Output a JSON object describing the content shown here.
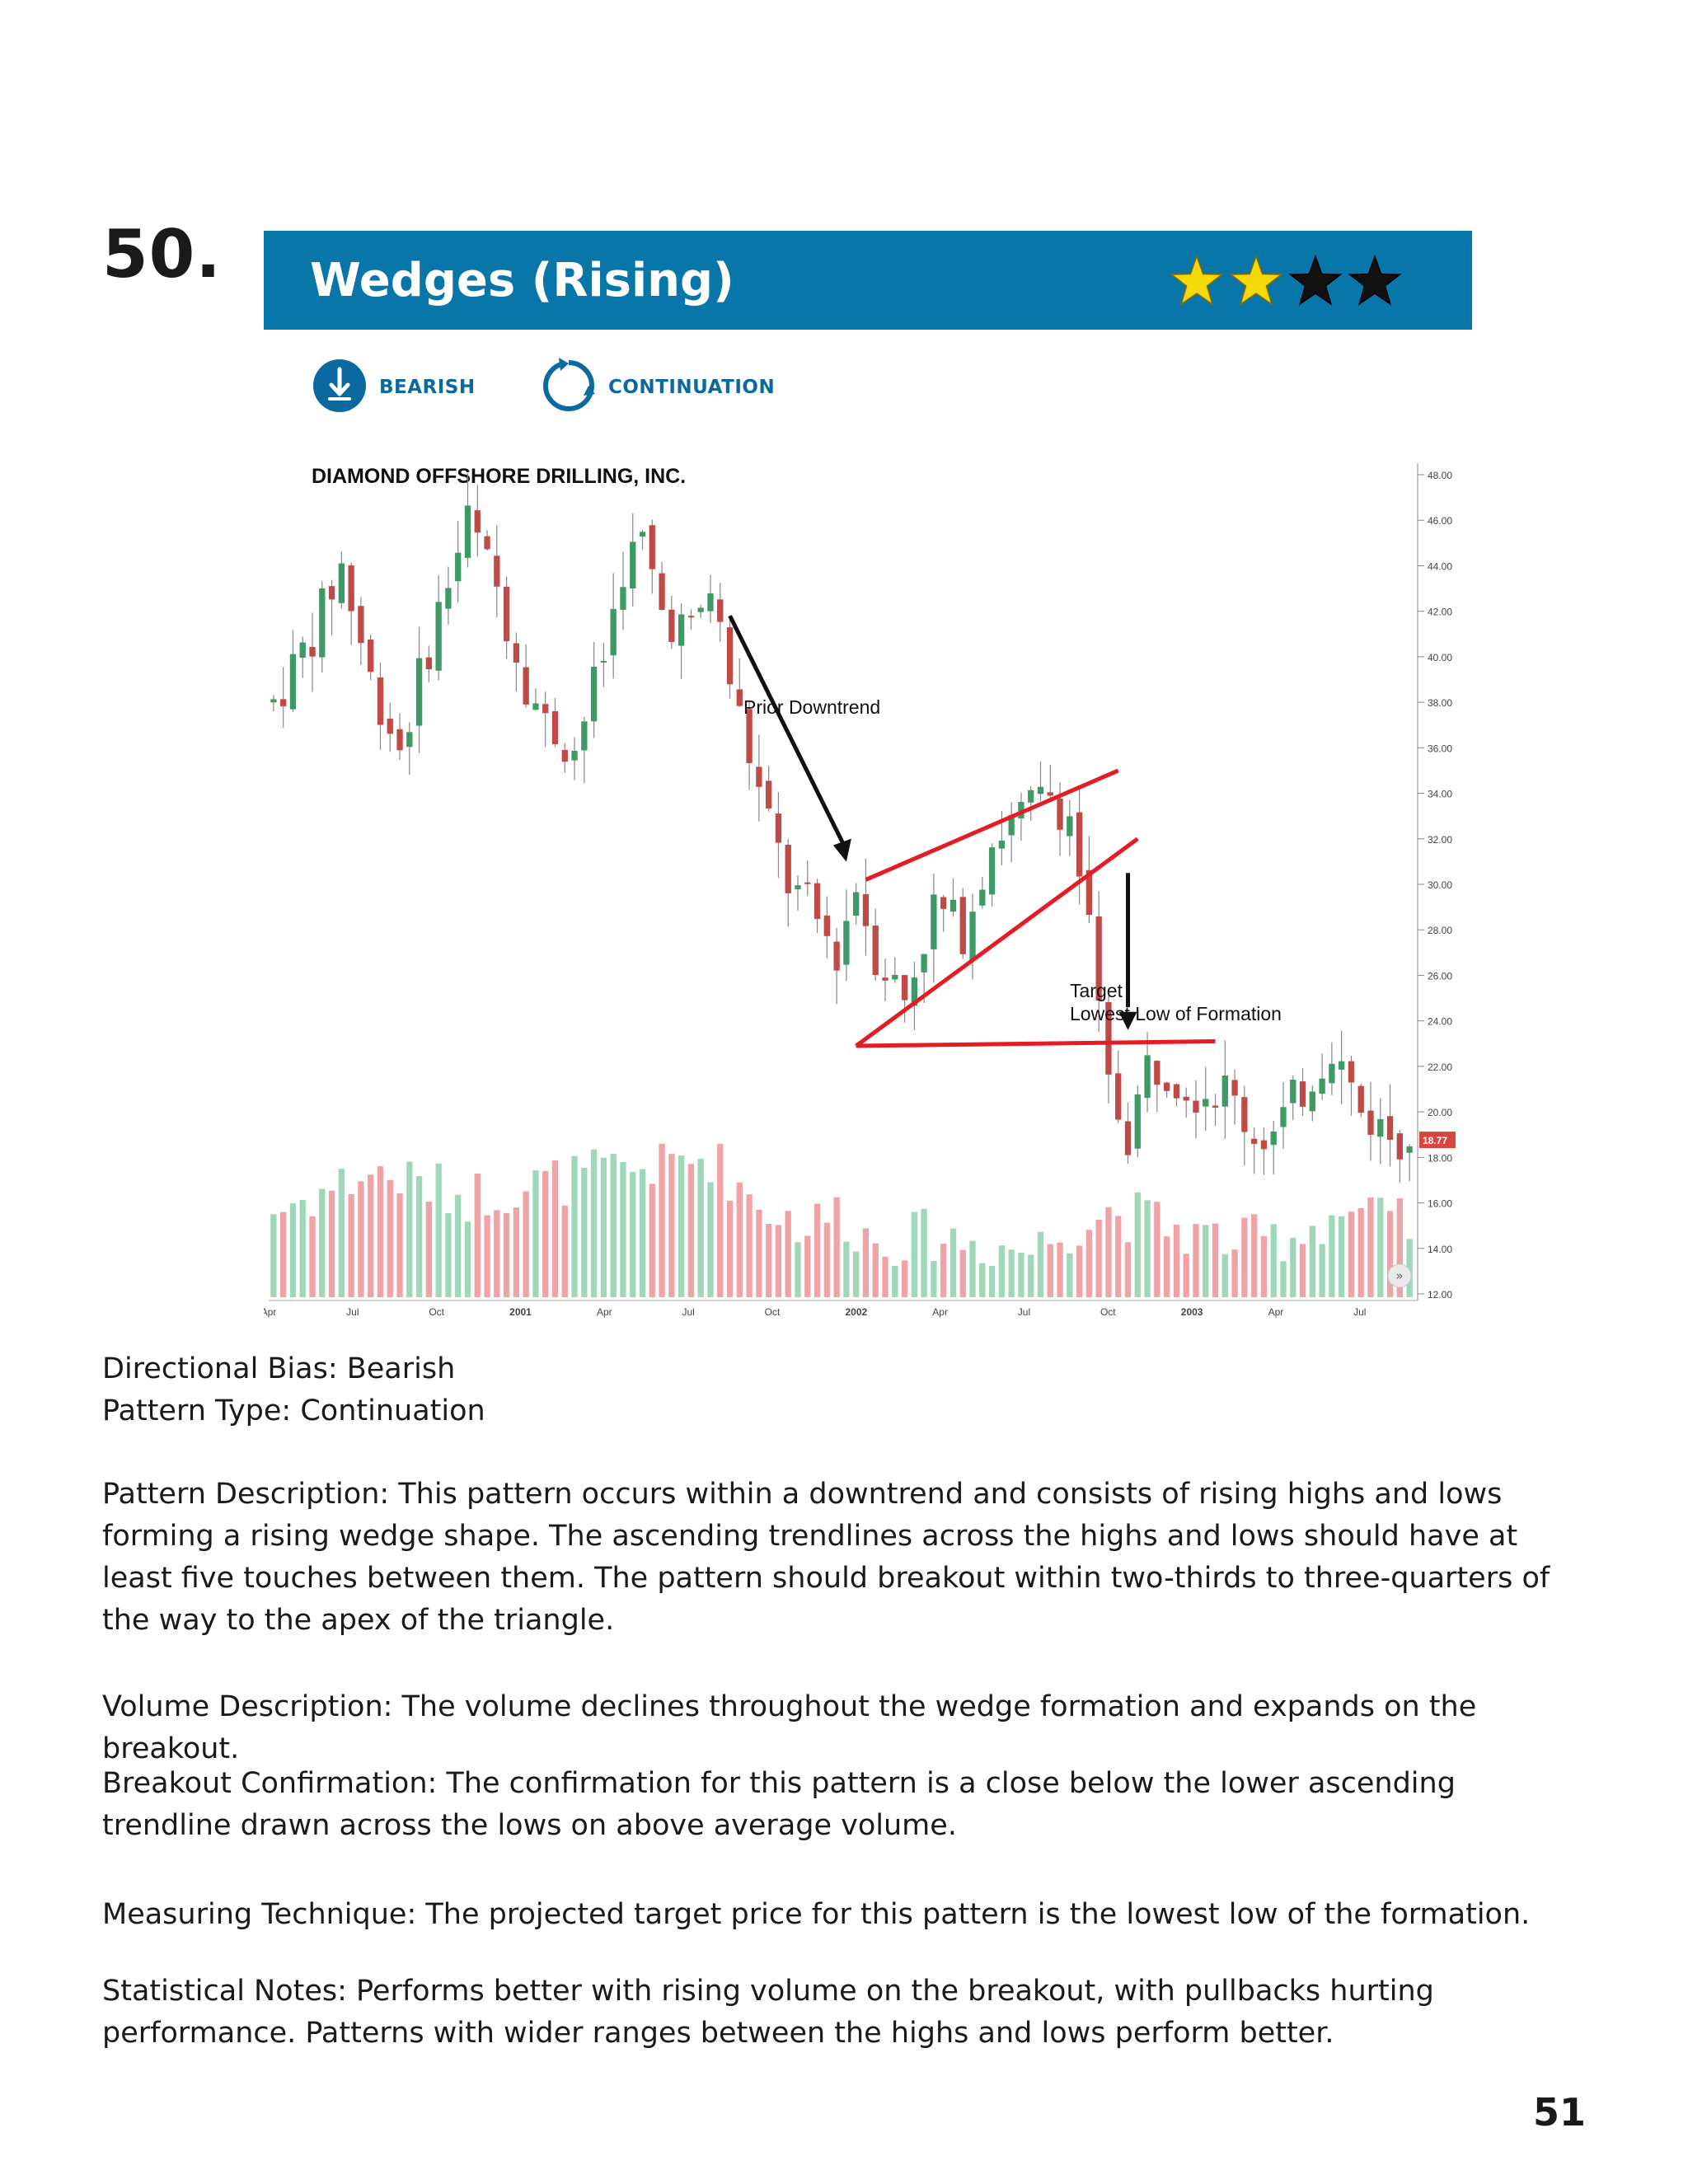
{
  "page": {
    "pattern_number": "50.",
    "page_number": "51"
  },
  "banner": {
    "title": "Wedges (Rising)",
    "rating": 4,
    "rating_filled": 2,
    "filled_star_color": "#f5d90a",
    "empty_star_color": "#111111",
    "background_color": "#0876a8"
  },
  "tags": {
    "bias_label": "BEARISH",
    "bias_icon": "down-arrow-circle-icon",
    "type_label": "CONTINUATION",
    "type_icon": "cycle-arrows-icon"
  },
  "chart_data": {
    "type": "candlestick",
    "title": "DIAMOND OFFSHORE DRILLING, INC.",
    "y_ticks": [
      "48.00",
      "46.00",
      "44.00",
      "42.00",
      "40.00",
      "38.00",
      "36.00",
      "34.00",
      "32.00",
      "30.00",
      "28.00",
      "26.00",
      "24.00",
      "22.00",
      "20.00",
      "18.00",
      "16.00",
      "14.00",
      "12.00"
    ],
    "ylim": [
      12,
      48
    ],
    "last_price": "18.77",
    "x_ticks": [
      "Apr",
      "Jul",
      "Oct",
      "2001",
      "Apr",
      "Jul",
      "Oct",
      "2002",
      "Apr",
      "Jul",
      "Oct",
      "2003",
      "Apr",
      "Jul"
    ],
    "annotations": {
      "prior_downtrend": "Prior Downtrend",
      "target_line1": "Target",
      "target_line2": "Lowest Low of Formation"
    },
    "price_path": [
      [
        0,
        38
      ],
      [
        4,
        41
      ],
      [
        7,
        44
      ],
      [
        10,
        39
      ],
      [
        13,
        36
      ],
      [
        17,
        42
      ],
      [
        20,
        46
      ],
      [
        23,
        43
      ],
      [
        26,
        39
      ],
      [
        28,
        37
      ],
      [
        31,
        36
      ],
      [
        34,
        40
      ],
      [
        36,
        44
      ],
      [
        38,
        45
      ],
      [
        40,
        42
      ],
      [
        43,
        41
      ],
      [
        45,
        43
      ],
      [
        47,
        39
      ],
      [
        50,
        34
      ],
      [
        53,
        30
      ],
      [
        55,
        29
      ],
      [
        58,
        27
      ],
      [
        60,
        30
      ],
      [
        62,
        27
      ],
      [
        65,
        25
      ],
      [
        68,
        29
      ],
      [
        71,
        28
      ],
      [
        74,
        32
      ],
      [
        77,
        33
      ],
      [
        80,
        34
      ],
      [
        82,
        33
      ],
      [
        84,
        28
      ],
      [
        85,
        24
      ],
      [
        86,
        21
      ],
      [
        88,
        19
      ],
      [
        90,
        22
      ],
      [
        92,
        22
      ],
      [
        95,
        21
      ],
      [
        98,
        21
      ],
      [
        101,
        19
      ],
      [
        103,
        19
      ],
      [
        106,
        21
      ],
      [
        109,
        23
      ],
      [
        112,
        20
      ],
      [
        115,
        19
      ],
      [
        117,
        19
      ]
    ],
    "volume_relative": [
      [
        0,
        0.55
      ],
      [
        10,
        0.8
      ],
      [
        20,
        0.65
      ],
      [
        30,
        0.75
      ],
      [
        40,
        0.85
      ],
      [
        45,
        0.9
      ],
      [
        50,
        0.6
      ],
      [
        55,
        0.45
      ],
      [
        58,
        0.55
      ],
      [
        62,
        0.35
      ],
      [
        68,
        0.4
      ],
      [
        72,
        0.35
      ],
      [
        78,
        0.3
      ],
      [
        82,
        0.45
      ],
      [
        86,
        0.55
      ],
      [
        90,
        0.5
      ],
      [
        95,
        0.4
      ],
      [
        100,
        0.35
      ],
      [
        105,
        0.4
      ],
      [
        110,
        0.55
      ],
      [
        117,
        0.45
      ]
    ],
    "colors": {
      "up": "#3d9a64",
      "down": "#c04a45",
      "vol_up": "#9fd8b8",
      "vol_down": "#f0a3a6",
      "trendline": "#e51c23",
      "arrow": "#111111",
      "last_price_bg": "#d8453d"
    }
  },
  "text": {
    "directional_bias": "Directional Bias: Bearish",
    "pattern_type": "Pattern Type: Continuation",
    "pattern_description": "Pattern Description: This pattern occurs within a downtrend and consists of rising highs and lows forming a rising wedge shape. The ascending trendlines across the highs and lows should have at least five touches between them. The pattern should breakout within two-thirds to three-quarters of the way to the apex of the triangle.",
    "volume_description": "Volume Description: The volume declines throughout the wedge formation and expands on the breakout.",
    "breakout_confirmation": "Breakout Confirmation: The confirmation for this pattern is a close below the lower ascending trendline drawn across the lows on above average volume.",
    "measuring_technique": "Measuring Technique: The projected target price for this pattern is the lowest low of the formation.",
    "statistical_notes": "Statistical Notes: Performs better with rising volume on the breakout, with pullbacks hurting performance. Patterns with wider ranges between the highs and lows perform better."
  }
}
